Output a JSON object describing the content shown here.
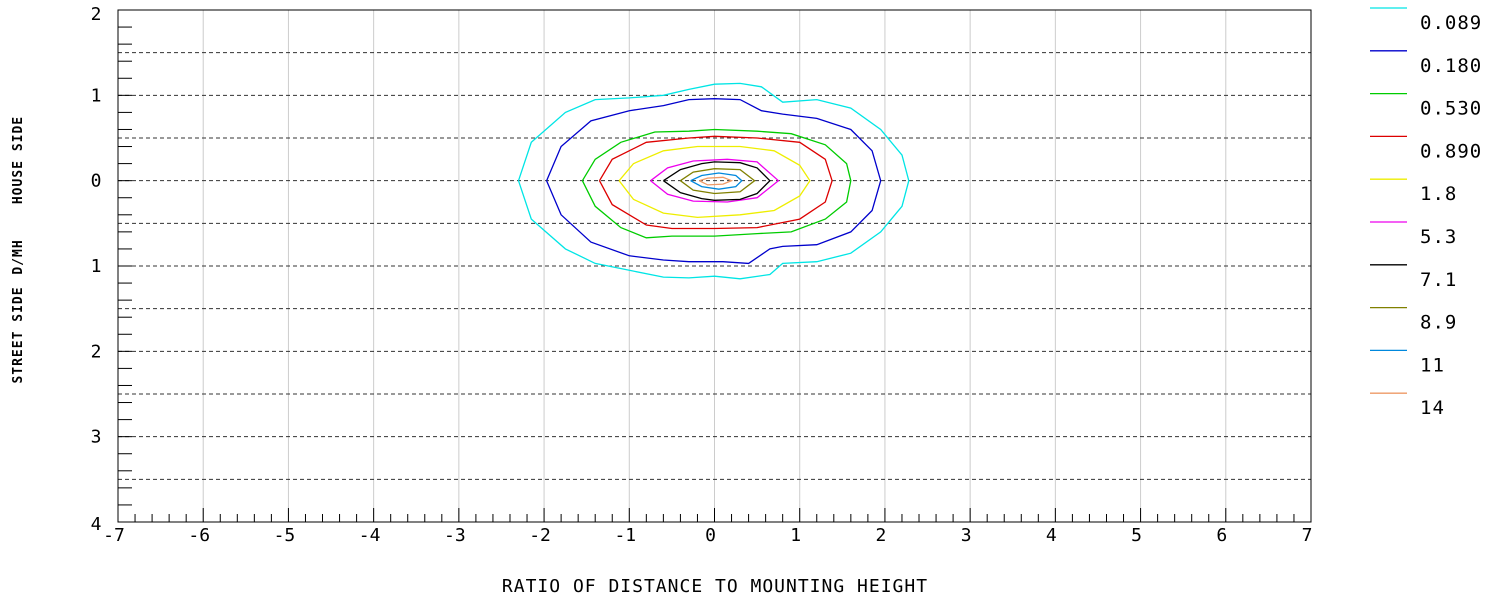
{
  "chart_data": {
    "type": "contour",
    "xlabel": "RATIO OF DISTANCE TO MOUNTING HEIGHT",
    "ylabel_street": "STREET SIDE",
    "ylabel_mid": "D/MH",
    "ylabel_house": "HOUSE SIDE",
    "xlim": [
      -7,
      7
    ],
    "ylim": [
      -4,
      2
    ],
    "x_ticks": [
      "-7",
      "-6",
      "-5",
      "-4",
      "-3",
      "-2",
      "-1",
      "0",
      "1",
      "2",
      "3",
      "4",
      "5",
      "6",
      "7"
    ],
    "y_ticks": [
      {
        "value": 2,
        "label": "2"
      },
      {
        "value": 1,
        "label": "1"
      },
      {
        "value": 0,
        "label": "0"
      },
      {
        "value": -1,
        "label": "1"
      },
      {
        "value": -2,
        "label": "2"
      },
      {
        "value": -3,
        "label": "3"
      },
      {
        "value": -4,
        "label": "4"
      }
    ],
    "dashed_gridlines_y": [
      1.5,
      1,
      0.5,
      0,
      -0.5,
      -1,
      -1.5,
      -2,
      -2.5,
      -3,
      -3.5
    ],
    "grid": true,
    "legend_position": "right",
    "series": [
      {
        "name": "0.089",
        "color": "#00e5e5",
        "points": [
          [
            -2.3,
            0
          ],
          [
            -2.15,
            0.45
          ],
          [
            -1.75,
            0.8
          ],
          [
            -1.4,
            0.95
          ],
          [
            -1.0,
            0.97
          ],
          [
            -0.6,
            1.0
          ],
          [
            -0.3,
            1.07
          ],
          [
            0,
            1.13
          ],
          [
            0.3,
            1.14
          ],
          [
            0.55,
            1.1
          ],
          [
            0.8,
            0.92
          ],
          [
            1.2,
            0.95
          ],
          [
            1.6,
            0.85
          ],
          [
            1.95,
            0.6
          ],
          [
            2.2,
            0.3
          ],
          [
            2.28,
            0
          ],
          [
            2.2,
            -0.3
          ],
          [
            1.95,
            -0.6
          ],
          [
            1.6,
            -0.85
          ],
          [
            1.2,
            -0.95
          ],
          [
            0.8,
            -0.97
          ],
          [
            0.65,
            -1.1
          ],
          [
            0.3,
            -1.15
          ],
          [
            0,
            -1.12
          ],
          [
            -0.3,
            -1.14
          ],
          [
            -0.6,
            -1.13
          ],
          [
            -1.0,
            -1.05
          ],
          [
            -1.4,
            -0.97
          ],
          [
            -1.75,
            -0.8
          ],
          [
            -2.15,
            -0.45
          ],
          [
            -2.3,
            0
          ]
        ]
      },
      {
        "name": "0.180",
        "color": "#0000cc",
        "points": [
          [
            -1.97,
            0
          ],
          [
            -1.8,
            0.4
          ],
          [
            -1.45,
            0.7
          ],
          [
            -1.0,
            0.82
          ],
          [
            -0.6,
            0.88
          ],
          [
            -0.3,
            0.95
          ],
          [
            0,
            0.96
          ],
          [
            0.3,
            0.95
          ],
          [
            0.55,
            0.82
          ],
          [
            0.8,
            0.78
          ],
          [
            1.2,
            0.73
          ],
          [
            1.6,
            0.6
          ],
          [
            1.85,
            0.35
          ],
          [
            1.95,
            0
          ],
          [
            1.85,
            -0.35
          ],
          [
            1.6,
            -0.6
          ],
          [
            1.2,
            -0.75
          ],
          [
            0.8,
            -0.77
          ],
          [
            0.65,
            -0.8
          ],
          [
            0.4,
            -0.97
          ],
          [
            0.1,
            -0.95
          ],
          [
            -0.3,
            -0.95
          ],
          [
            -0.6,
            -0.93
          ],
          [
            -1.0,
            -0.88
          ],
          [
            -1.45,
            -0.72
          ],
          [
            -1.8,
            -0.4
          ],
          [
            -1.97,
            0
          ]
        ]
      },
      {
        "name": "0.530",
        "color": "#00cc00",
        "points": [
          [
            -1.55,
            0
          ],
          [
            -1.4,
            0.25
          ],
          [
            -1.1,
            0.45
          ],
          [
            -0.7,
            0.57
          ],
          [
            -0.3,
            0.58
          ],
          [
            0,
            0.6
          ],
          [
            0.5,
            0.58
          ],
          [
            0.9,
            0.55
          ],
          [
            1.3,
            0.42
          ],
          [
            1.55,
            0.2
          ],
          [
            1.6,
            0
          ],
          [
            1.55,
            -0.25
          ],
          [
            1.3,
            -0.45
          ],
          [
            0.9,
            -0.6
          ],
          [
            0.5,
            -0.62
          ],
          [
            0,
            -0.65
          ],
          [
            -0.5,
            -0.65
          ],
          [
            -0.8,
            -0.67
          ],
          [
            -1.1,
            -0.55
          ],
          [
            -1.4,
            -0.3
          ],
          [
            -1.55,
            0
          ]
        ]
      },
      {
        "name": "0.890",
        "color": "#dd0000",
        "points": [
          [
            -1.35,
            0
          ],
          [
            -1.2,
            0.25
          ],
          [
            -0.8,
            0.45
          ],
          [
            -0.3,
            0.5
          ],
          [
            0,
            0.52
          ],
          [
            0.5,
            0.5
          ],
          [
            1.0,
            0.45
          ],
          [
            1.3,
            0.25
          ],
          [
            1.38,
            0
          ],
          [
            1.3,
            -0.25
          ],
          [
            1.0,
            -0.45
          ],
          [
            0.5,
            -0.55
          ],
          [
            0,
            -0.56
          ],
          [
            -0.5,
            -0.56
          ],
          [
            -0.8,
            -0.52
          ],
          [
            -1.2,
            -0.28
          ],
          [
            -1.35,
            0
          ]
        ]
      },
      {
        "name": "1.8",
        "color": "#eeee00",
        "points": [
          [
            -1.12,
            0
          ],
          [
            -0.95,
            0.2
          ],
          [
            -0.6,
            0.35
          ],
          [
            -0.2,
            0.4
          ],
          [
            0.3,
            0.4
          ],
          [
            0.7,
            0.35
          ],
          [
            1.0,
            0.18
          ],
          [
            1.12,
            0
          ],
          [
            1.0,
            -0.18
          ],
          [
            0.7,
            -0.35
          ],
          [
            0.3,
            -0.4
          ],
          [
            -0.2,
            -0.43
          ],
          [
            -0.6,
            -0.38
          ],
          [
            -0.95,
            -0.22
          ],
          [
            -1.12,
            0
          ]
        ]
      },
      {
        "name": "5.3",
        "color": "#ee00ee",
        "points": [
          [
            -0.75,
            0
          ],
          [
            -0.55,
            0.15
          ],
          [
            -0.25,
            0.23
          ],
          [
            0.15,
            0.25
          ],
          [
            0.5,
            0.22
          ],
          [
            0.75,
            0
          ],
          [
            0.5,
            -0.2
          ],
          [
            0.15,
            -0.25
          ],
          [
            -0.25,
            -0.24
          ],
          [
            -0.55,
            -0.16
          ],
          [
            -0.75,
            0
          ]
        ]
      },
      {
        "name": "7.1",
        "color": "#000000",
        "points": [
          [
            -0.6,
            0
          ],
          [
            -0.4,
            0.13
          ],
          [
            -0.15,
            0.2
          ],
          [
            0,
            0.22
          ],
          [
            0.3,
            0.21
          ],
          [
            0.5,
            0.15
          ],
          [
            0.65,
            0
          ],
          [
            0.5,
            -0.15
          ],
          [
            0.3,
            -0.22
          ],
          [
            0,
            -0.23
          ],
          [
            -0.15,
            -0.21
          ],
          [
            -0.4,
            -0.14
          ],
          [
            -0.6,
            0
          ]
        ]
      },
      {
        "name": "8.9",
        "color": "#808000",
        "points": [
          [
            -0.4,
            0
          ],
          [
            -0.25,
            0.1
          ],
          [
            0,
            0.14
          ],
          [
            0.3,
            0.13
          ],
          [
            0.47,
            0
          ],
          [
            0.3,
            -0.13
          ],
          [
            0,
            -0.15
          ],
          [
            -0.25,
            -0.11
          ],
          [
            -0.4,
            0
          ]
        ]
      },
      {
        "name": "11",
        "color": "#0088dd",
        "points": [
          [
            -0.28,
            0
          ],
          [
            -0.15,
            0.06
          ],
          [
            0.05,
            0.09
          ],
          [
            0.25,
            0.06
          ],
          [
            0.32,
            0
          ],
          [
            0.25,
            -0.07
          ],
          [
            0.05,
            -0.1
          ],
          [
            -0.15,
            -0.07
          ],
          [
            -0.28,
            0
          ]
        ]
      },
      {
        "name": "14",
        "color": "#ee9966",
        "points": [
          [
            -0.18,
            0
          ],
          [
            -0.08,
            0.03
          ],
          [
            0.1,
            0.04
          ],
          [
            0.2,
            0
          ],
          [
            0.1,
            -0.04
          ],
          [
            -0.08,
            -0.05
          ],
          [
            -0.18,
            0
          ]
        ]
      }
    ]
  }
}
